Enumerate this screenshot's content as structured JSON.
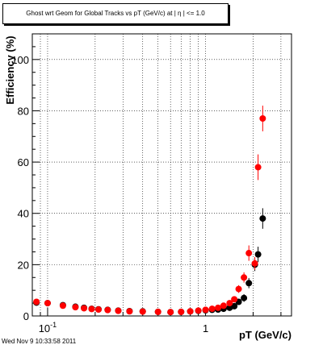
{
  "chart_data": {
    "type": "scatter",
    "title": "Ghost wrt Geom for Global Tracks vs pT (GeV/c) at |  η | <= 1.0",
    "xlabel": "pT (GeV/c)",
    "ylabel": "Efficiency (%)",
    "xscale": "log",
    "xlim": [
      0.08,
      3.5
    ],
    "ylim": [
      0,
      110
    ],
    "grid": true,
    "xticks": [
      {
        "value": 0.1,
        "base": "10",
        "exp": "-1"
      },
      {
        "value": 1,
        "label": "1"
      }
    ],
    "yticks": [
      0,
      20,
      40,
      60,
      80,
      100
    ],
    "series": [
      {
        "color": "#000000",
        "points": [
          {
            "x": 0.085,
            "y": 5.2,
            "err": 1.0
          },
          {
            "x": 0.1,
            "y": 5.0,
            "err": 0.8
          },
          {
            "x": 0.125,
            "y": 4.2,
            "err": 0.8
          },
          {
            "x": 0.15,
            "y": 3.6,
            "err": 0.6
          },
          {
            "x": 0.17,
            "y": 3.2,
            "err": 0.5
          },
          {
            "x": 0.19,
            "y": 2.8,
            "err": 0.4
          },
          {
            "x": 0.21,
            "y": 2.6,
            "err": 0.3
          },
          {
            "x": 0.24,
            "y": 2.4,
            "err": 0.3
          },
          {
            "x": 0.28,
            "y": 2.1,
            "err": 0.3
          },
          {
            "x": 0.33,
            "y": 1.9,
            "err": 0.2
          },
          {
            "x": 0.4,
            "y": 1.8,
            "err": 0.2
          },
          {
            "x": 0.5,
            "y": 1.6,
            "err": 0.2
          },
          {
            "x": 0.6,
            "y": 1.5,
            "err": 0.2
          },
          {
            "x": 0.7,
            "y": 1.6,
            "err": 0.2
          },
          {
            "x": 0.8,
            "y": 1.8,
            "err": 0.2
          },
          {
            "x": 0.9,
            "y": 2.0,
            "err": 0.3
          },
          {
            "x": 1.0,
            "y": 2.2,
            "err": 0.3
          },
          {
            "x": 1.1,
            "y": 2.4,
            "err": 0.4
          },
          {
            "x": 1.2,
            "y": 2.5,
            "err": 0.5
          },
          {
            "x": 1.3,
            "y": 2.8,
            "err": 0.6
          },
          {
            "x": 1.42,
            "y": 3.2,
            "err": 0.8
          },
          {
            "x": 1.52,
            "y": 3.8,
            "err": 1.0
          },
          {
            "x": 1.62,
            "y": 5.5,
            "err": 1.2
          },
          {
            "x": 1.75,
            "y": 7.0,
            "err": 1.5
          },
          {
            "x": 1.88,
            "y": 12.8,
            "err": 2.0
          },
          {
            "x": 2.05,
            "y": 20.0,
            "err": 2.5
          },
          {
            "x": 2.15,
            "y": 24.0,
            "err": 3.0
          },
          {
            "x": 2.3,
            "y": 38.0,
            "err": 4.0
          }
        ]
      },
      {
        "color": "#ff0000",
        "points": [
          {
            "x": 0.085,
            "y": 5.5,
            "err": 1.0
          },
          {
            "x": 0.1,
            "y": 5.0,
            "err": 0.8
          },
          {
            "x": 0.125,
            "y": 4.0,
            "err": 0.8
          },
          {
            "x": 0.15,
            "y": 3.4,
            "err": 0.6
          },
          {
            "x": 0.17,
            "y": 3.0,
            "err": 0.5
          },
          {
            "x": 0.19,
            "y": 2.7,
            "err": 0.4
          },
          {
            "x": 0.21,
            "y": 2.5,
            "err": 0.3
          },
          {
            "x": 0.24,
            "y": 2.3,
            "err": 0.3
          },
          {
            "x": 0.28,
            "y": 2.0,
            "err": 0.3
          },
          {
            "x": 0.33,
            "y": 1.8,
            "err": 0.2
          },
          {
            "x": 0.4,
            "y": 1.7,
            "err": 0.2
          },
          {
            "x": 0.5,
            "y": 1.6,
            "err": 0.2
          },
          {
            "x": 0.6,
            "y": 1.5,
            "err": 0.2
          },
          {
            "x": 0.7,
            "y": 1.6,
            "err": 0.2
          },
          {
            "x": 0.8,
            "y": 1.8,
            "err": 0.2
          },
          {
            "x": 0.9,
            "y": 2.1,
            "err": 0.3
          },
          {
            "x": 1.0,
            "y": 2.4,
            "err": 0.3
          },
          {
            "x": 1.1,
            "y": 2.8,
            "err": 0.4
          },
          {
            "x": 1.2,
            "y": 3.2,
            "err": 0.5
          },
          {
            "x": 1.3,
            "y": 4.0,
            "err": 0.6
          },
          {
            "x": 1.42,
            "y": 5.0,
            "err": 0.8
          },
          {
            "x": 1.52,
            "y": 6.5,
            "err": 1.0
          },
          {
            "x": 1.62,
            "y": 10.5,
            "err": 1.5
          },
          {
            "x": 1.75,
            "y": 15.0,
            "err": 2.0
          },
          {
            "x": 1.88,
            "y": 24.5,
            "err": 3.0
          },
          {
            "x": 2.05,
            "y": 20.5,
            "err": 2.5
          },
          {
            "x": 2.15,
            "y": 58.0,
            "err": 5.0
          },
          {
            "x": 2.3,
            "y": 77.0,
            "err": 5.0
          }
        ]
      }
    ]
  },
  "footer_text": "Wed Nov  9 10:33:58 2011"
}
